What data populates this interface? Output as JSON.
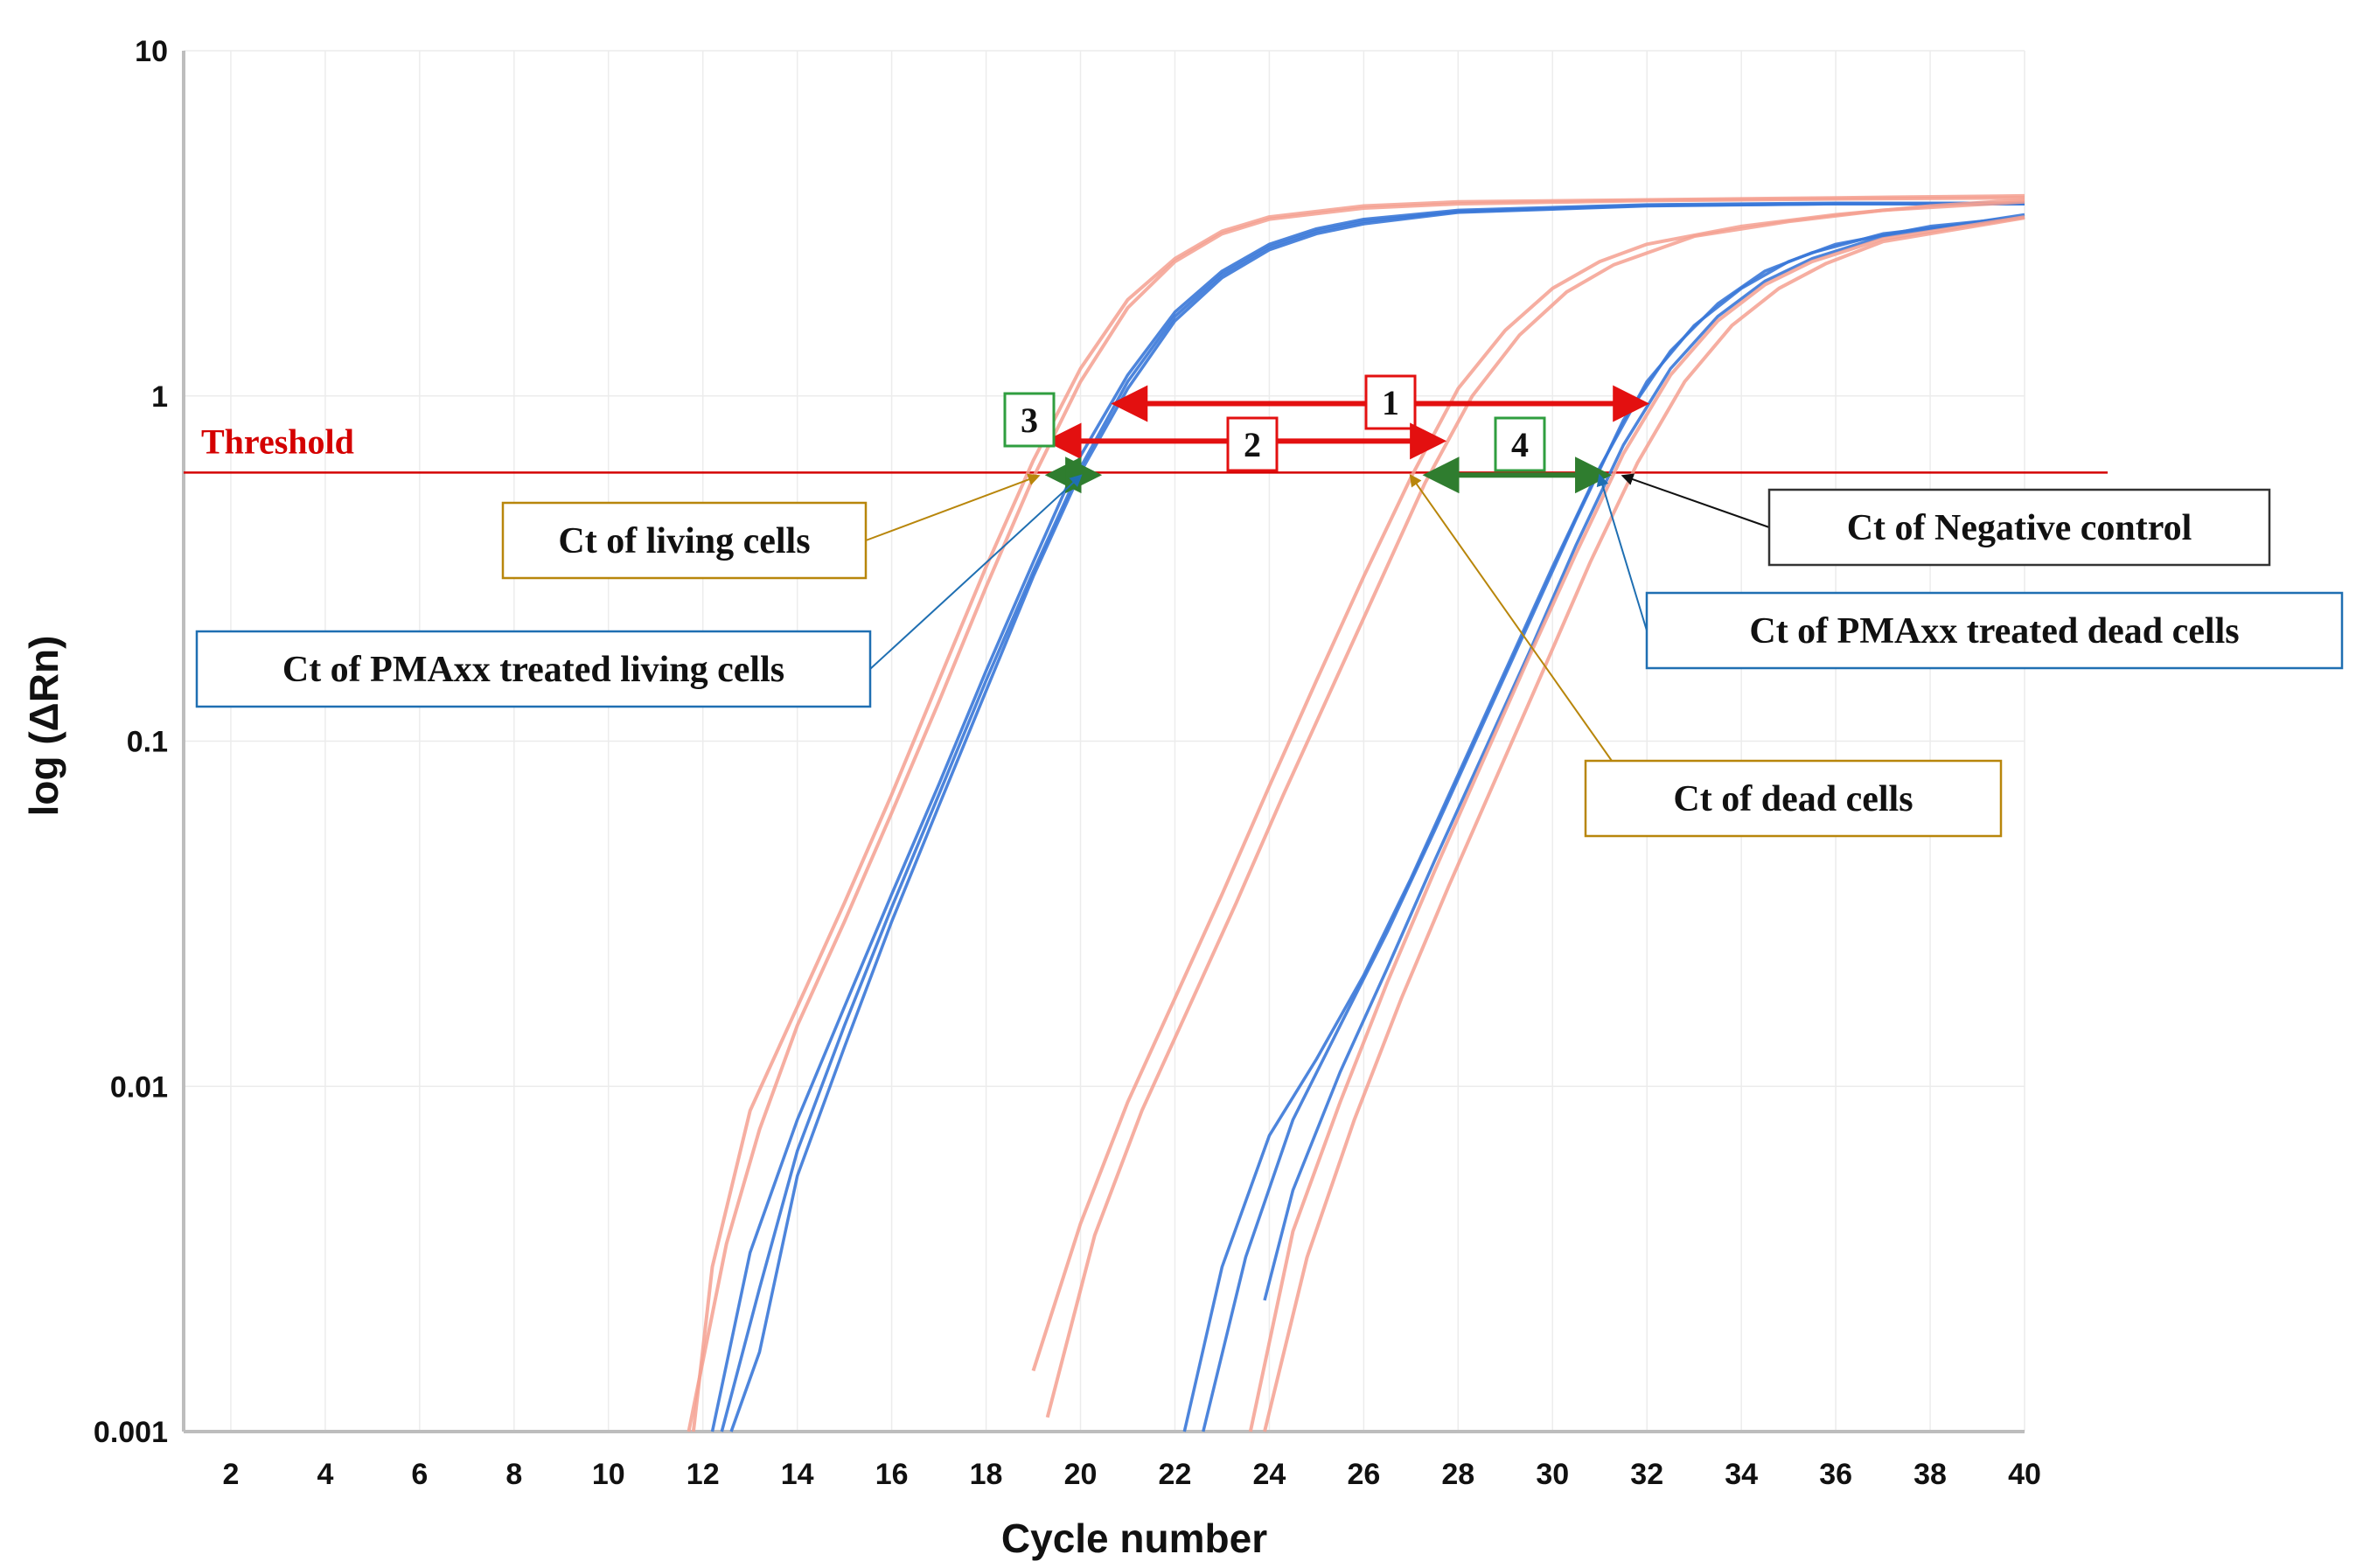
{
  "chart_data": {
    "type": "line",
    "title": "",
    "xlabel": "Cycle number",
    "ylabel": "log (ΔRn)",
    "x_ticks": [
      2,
      4,
      6,
      8,
      10,
      12,
      14,
      16,
      18,
      20,
      22,
      24,
      26,
      28,
      30,
      32,
      34,
      36,
      38,
      40
    ],
    "y_ticks": [
      "0.001",
      "0.01",
      "0.1",
      "1",
      "10"
    ],
    "y_scale": "log",
    "xlim": [
      1,
      40
    ],
    "ylim": [
      0.001,
      10
    ],
    "grid": "light vertical and horizontal",
    "threshold": {
      "label": "Threshold",
      "value": 0.6,
      "color": "#d40000"
    },
    "series": [
      {
        "group": "living",
        "color": "#f4a090",
        "points": [
          [
            11.8,
            0.001
          ],
          [
            12.2,
            0.003
          ],
          [
            13,
            0.0085
          ],
          [
            14,
            0.017
          ],
          [
            15,
            0.034
          ],
          [
            16,
            0.07
          ],
          [
            17,
            0.15
          ],
          [
            18,
            0.32
          ],
          [
            19,
            0.65
          ],
          [
            20,
            1.2
          ],
          [
            21,
            1.9
          ],
          [
            22,
            2.5
          ],
          [
            23,
            3.0
          ],
          [
            24,
            3.3
          ],
          [
            26,
            3.55
          ],
          [
            28,
            3.65
          ],
          [
            32,
            3.7
          ],
          [
            36,
            3.75
          ],
          [
            40,
            3.8
          ]
        ]
      },
      {
        "group": "living",
        "color": "#f4a090",
        "points": [
          [
            11.7,
            0.001
          ],
          [
            12.5,
            0.0035
          ],
          [
            13.2,
            0.0075
          ],
          [
            14,
            0.015
          ],
          [
            15,
            0.03
          ],
          [
            16,
            0.062
          ],
          [
            17,
            0.13
          ],
          [
            18,
            0.28
          ],
          [
            19,
            0.58
          ],
          [
            20,
            1.1
          ],
          [
            21,
            1.8
          ],
          [
            22,
            2.45
          ],
          [
            23,
            2.95
          ],
          [
            24,
            3.25
          ],
          [
            26,
            3.5
          ],
          [
            28,
            3.6
          ],
          [
            32,
            3.68
          ],
          [
            36,
            3.72
          ],
          [
            40,
            3.75
          ]
        ]
      },
      {
        "group": "pmaxx-living",
        "color": "#3a78d8",
        "points": [
          [
            12.2,
            0.001
          ],
          [
            13,
            0.0033
          ],
          [
            14,
            0.008
          ],
          [
            15,
            0.017
          ],
          [
            16,
            0.036
          ],
          [
            17,
            0.075
          ],
          [
            18,
            0.16
          ],
          [
            19,
            0.33
          ],
          [
            20,
            0.67
          ],
          [
            21,
            1.15
          ],
          [
            22,
            1.75
          ],
          [
            23,
            2.3
          ],
          [
            24,
            2.75
          ],
          [
            25,
            3.05
          ],
          [
            26,
            3.25
          ],
          [
            28,
            3.45
          ],
          [
            32,
            3.58
          ],
          [
            36,
            3.62
          ],
          [
            40,
            3.62
          ]
        ]
      },
      {
        "group": "pmaxx-living",
        "color": "#3a78d8",
        "points": [
          [
            12.4,
            0.001
          ],
          [
            13.2,
            0.0026
          ],
          [
            14,
            0.0065
          ],
          [
            15,
            0.015
          ],
          [
            16,
            0.033
          ],
          [
            17,
            0.07
          ],
          [
            18,
            0.15
          ],
          [
            19,
            0.31
          ],
          [
            20,
            0.62
          ],
          [
            21,
            1.1
          ],
          [
            22,
            1.7
          ],
          [
            23,
            2.25
          ],
          [
            24,
            2.7
          ],
          [
            25,
            3.0
          ],
          [
            26,
            3.2
          ],
          [
            28,
            3.42
          ],
          [
            32,
            3.56
          ],
          [
            36,
            3.6
          ],
          [
            40,
            3.6
          ]
        ]
      },
      {
        "group": "pmaxx-living",
        "color": "#3a78d8",
        "points": [
          [
            12.6,
            0.001
          ],
          [
            13.2,
            0.0017
          ],
          [
            14,
            0.0055
          ],
          [
            15,
            0.013
          ],
          [
            16,
            0.03
          ],
          [
            17,
            0.065
          ],
          [
            18,
            0.14
          ],
          [
            19,
            0.3
          ],
          [
            20,
            0.6
          ],
          [
            21,
            1.05
          ],
          [
            22,
            1.65
          ],
          [
            23,
            2.2
          ],
          [
            24,
            2.65
          ],
          [
            25,
            2.95
          ],
          [
            26,
            3.15
          ],
          [
            28,
            3.4
          ],
          [
            32,
            3.55
          ],
          [
            36,
            3.6
          ],
          [
            40,
            3.6
          ]
        ]
      },
      {
        "group": "dead",
        "color": "#f4a090",
        "points": [
          [
            19,
            0.0015
          ],
          [
            20,
            0.004
          ],
          [
            21,
            0.009
          ],
          [
            22,
            0.018
          ],
          [
            23,
            0.036
          ],
          [
            24,
            0.074
          ],
          [
            25,
            0.15
          ],
          [
            26,
            0.3
          ],
          [
            27,
            0.58
          ],
          [
            28,
            1.05
          ],
          [
            29,
            1.55
          ],
          [
            30,
            2.05
          ],
          [
            31,
            2.45
          ],
          [
            32,
            2.75
          ],
          [
            34,
            3.1
          ],
          [
            36,
            3.35
          ],
          [
            38,
            3.55
          ],
          [
            40,
            3.7
          ]
        ]
      },
      {
        "group": "dead",
        "color": "#f4a090",
        "points": [
          [
            19.3,
            0.0011
          ],
          [
            20.3,
            0.0037
          ],
          [
            21.3,
            0.0085
          ],
          [
            22.3,
            0.017
          ],
          [
            23.3,
            0.034
          ],
          [
            24.3,
            0.07
          ],
          [
            25.3,
            0.14
          ],
          [
            26.3,
            0.28
          ],
          [
            27.3,
            0.56
          ],
          [
            28.3,
            1.0
          ],
          [
            29.3,
            1.5
          ],
          [
            30.3,
            2.0
          ],
          [
            31.3,
            2.4
          ],
          [
            33,
            2.9
          ],
          [
            35,
            3.2
          ],
          [
            37,
            3.45
          ],
          [
            40,
            3.65
          ]
        ]
      },
      {
        "group": "pmaxx-dead",
        "color": "#3a78d8",
        "points": [
          [
            22.2,
            0.001
          ],
          [
            23,
            0.003
          ],
          [
            24,
            0.0072
          ],
          [
            25,
            0.012
          ],
          [
            26,
            0.021
          ],
          [
            27,
            0.04
          ],
          [
            28,
            0.08
          ],
          [
            29,
            0.16
          ],
          [
            30,
            0.32
          ],
          [
            31,
            0.62
          ],
          [
            32,
            1.1
          ],
          [
            33,
            1.6
          ],
          [
            34,
            2.05
          ],
          [
            35,
            2.45
          ],
          [
            36,
            2.75
          ],
          [
            38,
            3.1
          ],
          [
            40,
            3.3
          ]
        ]
      },
      {
        "group": "pmaxx-dead",
        "color": "#3a78d8",
        "points": [
          [
            22.6,
            0.001
          ],
          [
            23.5,
            0.0032
          ],
          [
            24.5,
            0.008
          ],
          [
            25.5,
            0.015
          ],
          [
            26.5,
            0.028
          ],
          [
            27.5,
            0.055
          ],
          [
            28.5,
            0.11
          ],
          [
            29.5,
            0.22
          ],
          [
            30.5,
            0.44
          ],
          [
            31.5,
            0.85
          ],
          [
            32.5,
            1.35
          ],
          [
            33.5,
            1.85
          ],
          [
            34.5,
            2.3
          ],
          [
            35.5,
            2.6
          ],
          [
            37,
            2.95
          ],
          [
            40,
            3.3
          ]
        ]
      },
      {
        "group": "pmaxx-dead",
        "color": "#3a78d8",
        "points": [
          [
            23.9,
            0.0024
          ],
          [
            24.5,
            0.005
          ],
          [
            25.5,
            0.011
          ],
          [
            26.5,
            0.022
          ],
          [
            27.5,
            0.045
          ],
          [
            28.5,
            0.09
          ],
          [
            29.5,
            0.18
          ],
          [
            30.5,
            0.37
          ],
          [
            31.5,
            0.72
          ],
          [
            32.5,
            1.2
          ],
          [
            33.5,
            1.7
          ],
          [
            34.5,
            2.15
          ],
          [
            35.5,
            2.5
          ],
          [
            37,
            2.9
          ],
          [
            40,
            3.35
          ]
        ]
      },
      {
        "group": "negative-control",
        "color": "#f4a090",
        "points": [
          [
            23.6,
            0.001
          ],
          [
            24.5,
            0.0038
          ],
          [
            25.5,
            0.009
          ],
          [
            26.5,
            0.02
          ],
          [
            27.5,
            0.042
          ],
          [
            28.5,
            0.086
          ],
          [
            29.5,
            0.175
          ],
          [
            30.5,
            0.35
          ],
          [
            31.5,
            0.68
          ],
          [
            32.5,
            1.15
          ],
          [
            33.5,
            1.65
          ],
          [
            34.5,
            2.1
          ],
          [
            35.5,
            2.45
          ],
          [
            37,
            2.85
          ],
          [
            40,
            3.3
          ]
        ]
      },
      {
        "group": "negative-control",
        "color": "#f4a090",
        "points": [
          [
            23.9,
            0.001
          ],
          [
            24.8,
            0.0032
          ],
          [
            25.8,
            0.008
          ],
          [
            26.8,
            0.018
          ],
          [
            27.8,
            0.038
          ],
          [
            28.8,
            0.078
          ],
          [
            29.8,
            0.16
          ],
          [
            30.8,
            0.33
          ],
          [
            31.8,
            0.64
          ],
          [
            32.8,
            1.1
          ],
          [
            33.8,
            1.6
          ],
          [
            34.8,
            2.05
          ],
          [
            35.8,
            2.42
          ],
          [
            37,
            2.8
          ],
          [
            40,
            3.28
          ]
        ]
      }
    ],
    "arrows": [
      {
        "label": "1",
        "color": "#e31010",
        "from": 20.8,
        "to": 31.9,
        "y": 0.95
      },
      {
        "label": "2",
        "color": "#e31010",
        "from": 19.4,
        "to": 27.6,
        "y": 0.74
      },
      {
        "label": "3",
        "color": "#2f7d2f",
        "from": 19.4,
        "to": 20.3,
        "y": 0.59
      },
      {
        "label": "4",
        "color": "#2f7d2f",
        "from": 27.4,
        "to": 31.1,
        "y": 0.59
      }
    ],
    "callouts": [
      {
        "text": "Ct of living cells",
        "color": "#b8860b",
        "target": [
          19.1,
          0.6
        ]
      },
      {
        "text": "Ct of PMAxx treated living cells",
        "color": "#1f6fb2",
        "target": [
          20.0,
          0.6
        ]
      },
      {
        "text": "Ct of Negative control",
        "color": "#111111",
        "target": [
          31.5,
          0.6
        ]
      },
      {
        "text": "Ct of PMAxx treated dead cells",
        "color": "#1f6fb2",
        "target": [
          31.0,
          0.6
        ]
      },
      {
        "text": "Ct of dead cells",
        "color": "#b8860b",
        "target": [
          27.0,
          0.6
        ]
      }
    ],
    "box_colors": {
      "red": "#e31010",
      "green": "#2f9e3f",
      "gold": "#b8860b",
      "blue": "#1f6fb2",
      "dark": "#333333"
    }
  }
}
